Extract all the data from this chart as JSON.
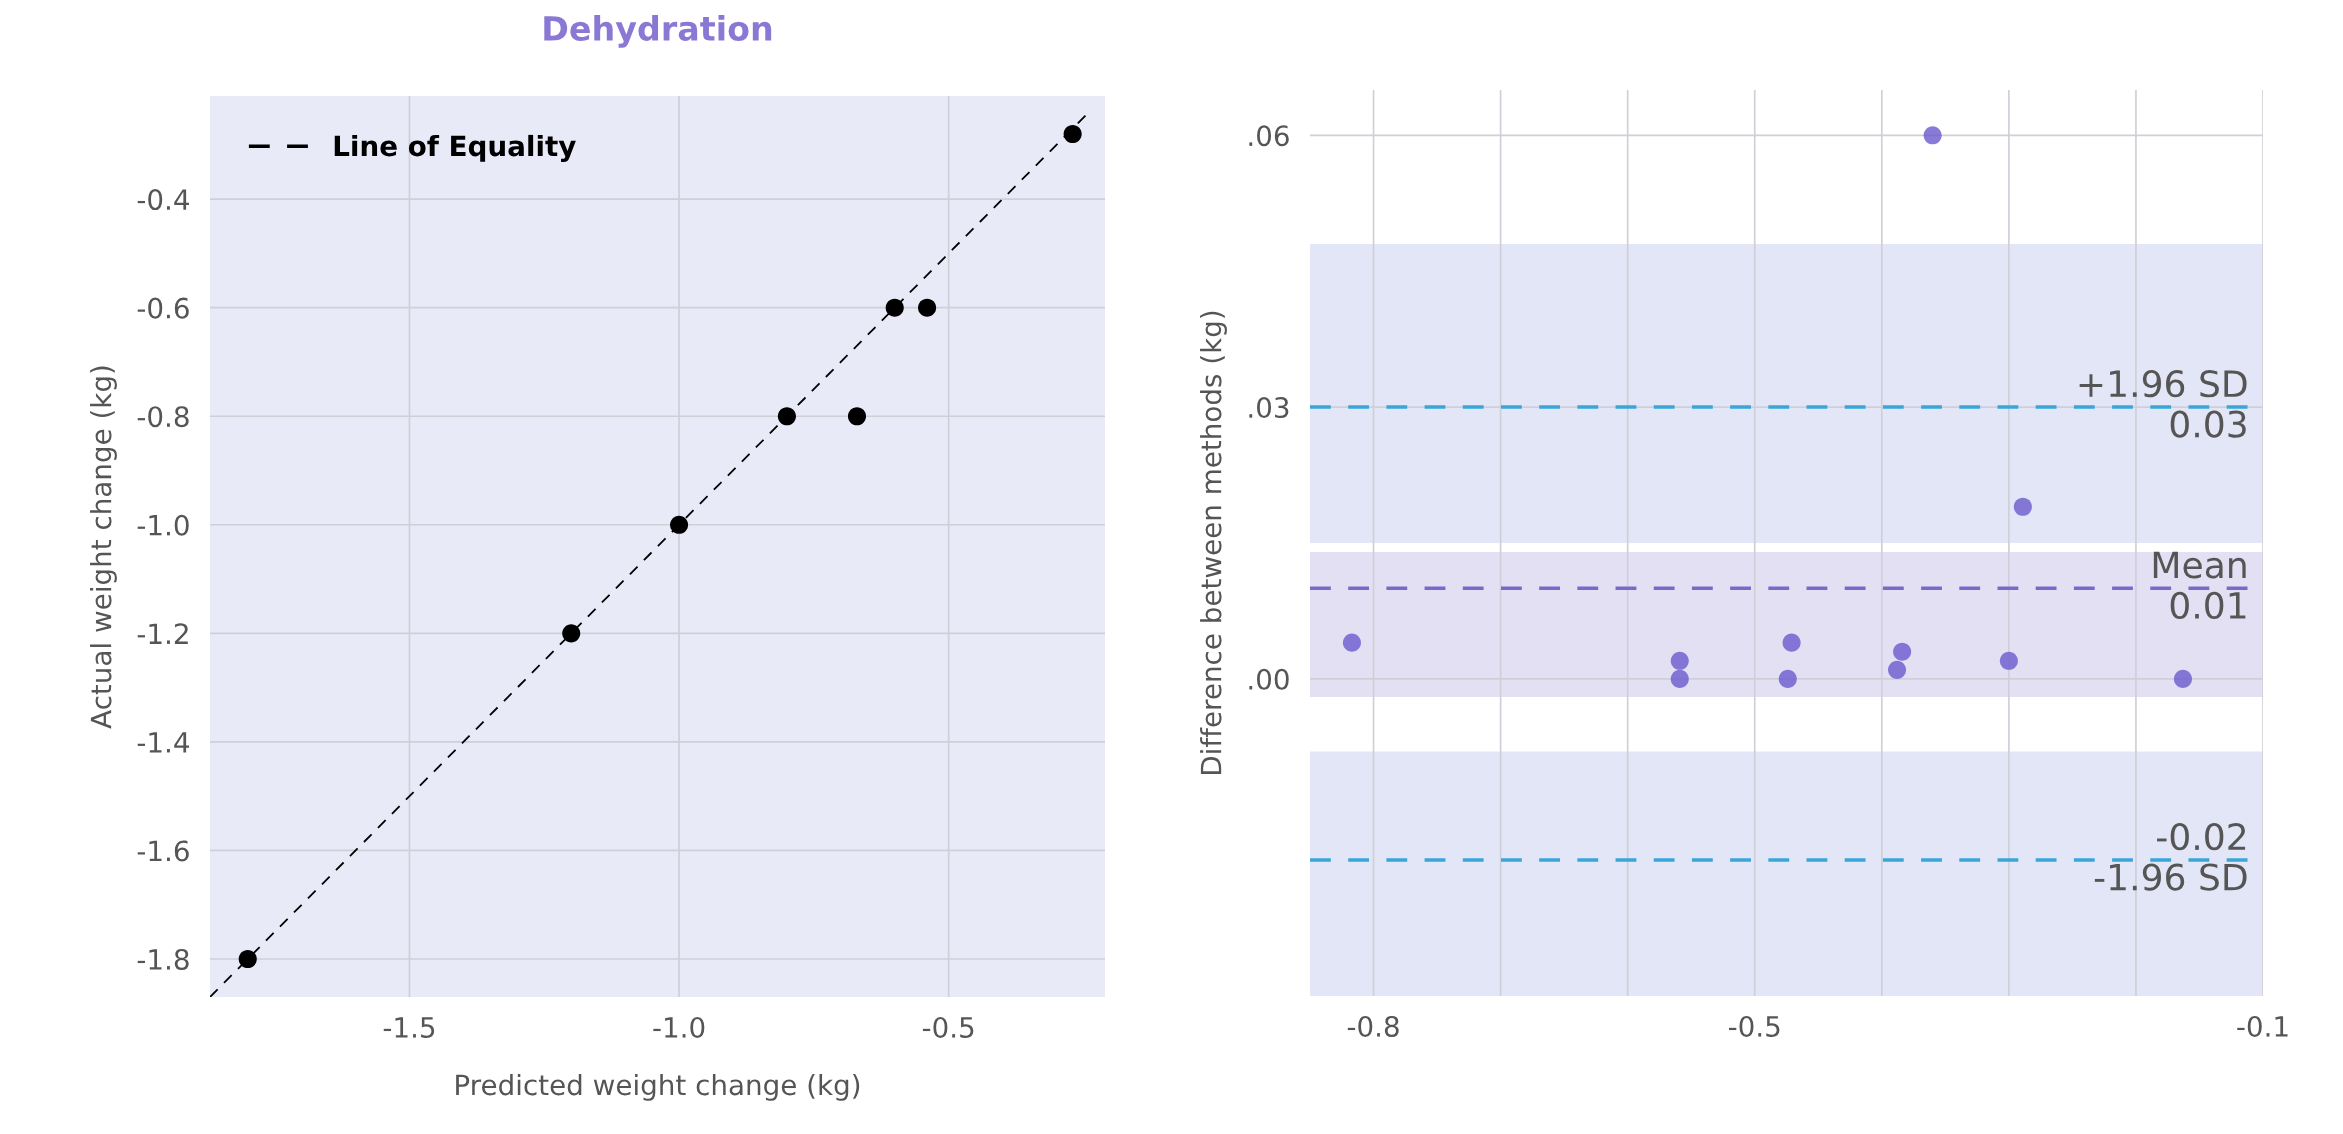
{
  "chart_data": [
    {
      "type": "scatter",
      "title": "Dehydration",
      "xlabel": "Predicted weight change (kg)",
      "ylabel": "Actual weight change (kg)",
      "xlim": [
        -1.87,
        -0.21
      ],
      "ylim": [
        -1.87,
        -0.21
      ],
      "xticks": [
        -1.5,
        {
          "value": -1.0,
          "label": "-1.0"
        },
        -0.5
      ],
      "yticks": [
        -1.8,
        -1.6,
        -1.4,
        -1.2,
        {
          "value": -1.0,
          "label": "-1.0"
        },
        -0.8,
        -0.6,
        -0.4
      ],
      "grid": true,
      "legend": "top left",
      "series": [
        {
          "color": "#000000",
          "marker": "circle",
          "x": [
            -1.8,
            -1.2,
            -1.0,
            -0.8,
            -0.67,
            -0.6,
            -0.54,
            -0.27
          ],
          "values": [
            -1.8,
            -1.2,
            -1.0,
            -0.8,
            -0.8,
            -0.6,
            -0.6,
            -0.28
          ]
        },
        {
          "type": "line",
          "name": "Line of Equality",
          "color": "#000000",
          "line_style": "dashed",
          "x": [
            -1.87,
            -0.24
          ],
          "values": [
            -1.87,
            -0.24
          ]
        }
      ]
    },
    {
      "type": "scatter",
      "ylabel": "Difference between methods (kg)",
      "xlim": [
        -0.85,
        -0.1
      ],
      "ylim": [
        -0.035,
        0.065
      ],
      "xticks": [
        -0.8,
        {
          "value": -0.7,
          "label": null
        },
        {
          "value": -0.6,
          "label": null
        },
        -0.5,
        {
          "value": -0.4,
          "label": null
        },
        {
          "value": -0.3,
          "label": null
        },
        {
          "value": -0.2,
          "label": null
        },
        -0.1
      ],
      "yticks": [
        {
          "value": 0.0,
          "label": ".00"
        },
        {
          "value": 0.03,
          "label": ".03"
        },
        {
          "value": 0.06,
          "label": ".06"
        }
      ],
      "grid": true,
      "series": [
        {
          "color": "#6a5acd",
          "marker": "circle",
          "x": [
            -0.817,
            -0.559,
            -0.559,
            -0.471,
            -0.474,
            -0.384,
            -0.388,
            -0.3,
            -0.163,
            -0.36,
            -0.289
          ],
          "values": [
            0.004,
            0.002,
            0.0,
            0.004,
            0.0,
            0.003,
            0.001,
            0.002,
            0.0,
            0.06,
            0.019
          ]
        }
      ],
      "ref_lines": [
        {
          "axis": "y",
          "value": 0.03,
          "label": "+1.96 SD",
          "color": "#3aa6d8",
          "line_style": "dashed"
        },
        {
          "axis": "y",
          "value": 0.01,
          "label": "Mean",
          "color": "#7b68c8",
          "line_style": "dashed"
        },
        {
          "axis": "y",
          "value": -0.02,
          "label": "-1.96 SD",
          "color": "#3aa6d8",
          "line_style": "dashed"
        }
      ],
      "annotations": [
        {
          "text": "0.03",
          "y": 0.03
        },
        {
          "text": "0.01",
          "y": 0.01
        },
        {
          "text": "-0.02",
          "y": -0.02
        }
      ],
      "bands": [
        {
          "axis": "y",
          "from": 0.015,
          "to": 0.048,
          "color": "#e3e6f6"
        },
        {
          "axis": "y",
          "from": -0.002,
          "to": 0.014,
          "color": "#e4e0f4"
        },
        {
          "axis": "y",
          "from": -0.035,
          "to": -0.008,
          "color": "#e3e6f6"
        }
      ]
    }
  ]
}
